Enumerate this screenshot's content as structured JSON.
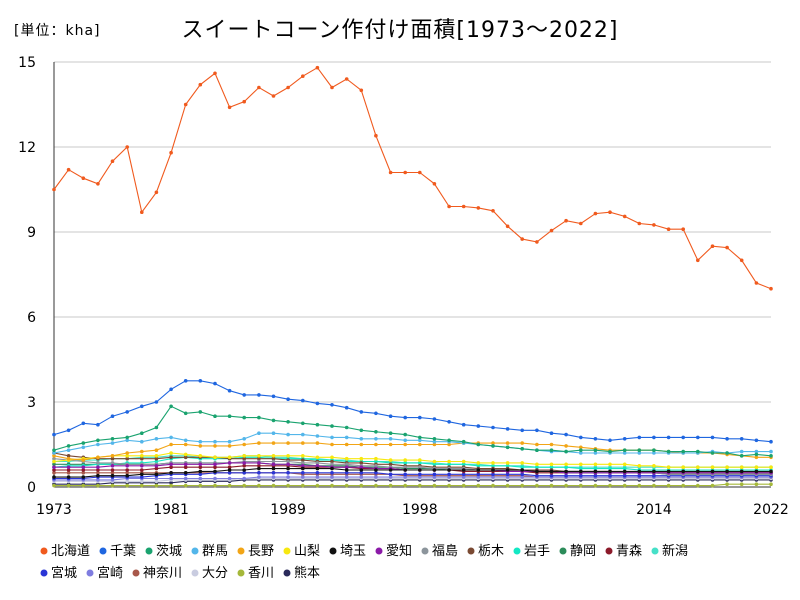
{
  "unit_label": "[単位：kha]",
  "chart_data": {
    "type": "line",
    "title": "スイートコーン作付け面積[1973～2022]",
    "xlabel": "",
    "ylabel": "",
    "x_tick_labels": [
      "1973",
      "1981",
      "1989",
      "1998",
      "2006",
      "2014",
      "2022"
    ],
    "y_tick_labels": [
      "0",
      "3",
      "6",
      "9",
      "12",
      "15"
    ],
    "xlim": [
      1973,
      2022
    ],
    "ylim": [
      0,
      15
    ],
    "grid": true,
    "legend_position": "bottom",
    "x": [
      1973,
      1974,
      1975,
      1976,
      1977,
      1978,
      1979,
      1980,
      1981,
      1982,
      1983,
      1984,
      1985,
      1986,
      1987,
      1988,
      1989,
      1990,
      1991,
      1992,
      1993,
      1994,
      1995,
      1996,
      1997,
      1998,
      1999,
      2000,
      2001,
      2002,
      2003,
      2004,
      2005,
      2006,
      2007,
      2008,
      2009,
      2010,
      2011,
      2012,
      2013,
      2014,
      2015,
      2016,
      2017,
      2018,
      2019,
      2020,
      2021,
      2022
    ],
    "series": [
      {
        "name": "北海道",
        "color": "#f05a1e",
        "values": [
          10.5,
          11.2,
          10.9,
          10.7,
          11.5,
          12.0,
          9.7,
          10.4,
          11.8,
          13.5,
          14.2,
          14.6,
          13.4,
          13.6,
          14.1,
          13.8,
          14.1,
          14.5,
          14.8,
          14.1,
          14.4,
          14.0,
          12.4,
          11.1,
          11.1,
          11.1,
          10.7,
          9.9,
          9.9,
          9.85,
          9.75,
          9.2,
          8.75,
          8.65,
          9.05,
          9.4,
          9.3,
          9.65,
          9.7,
          9.55,
          9.3,
          9.25,
          9.1,
          9.1,
          8.0,
          8.5,
          8.45,
          8.0,
          7.2,
          7.0
        ]
      },
      {
        "name": "千葉",
        "color": "#1f66e0",
        "values": [
          1.85,
          2.0,
          2.25,
          2.2,
          2.5,
          2.65,
          2.85,
          3.0,
          3.45,
          3.75,
          3.75,
          3.65,
          3.4,
          3.25,
          3.25,
          3.2,
          3.1,
          3.05,
          2.95,
          2.9,
          2.8,
          2.65,
          2.6,
          2.5,
          2.45,
          2.45,
          2.4,
          2.3,
          2.2,
          2.15,
          2.1,
          2.05,
          2.0,
          2.0,
          1.9,
          1.85,
          1.75,
          1.7,
          1.65,
          1.7,
          1.75,
          1.75,
          1.75,
          1.75,
          1.75,
          1.75,
          1.7,
          1.7,
          1.65,
          1.6
        ]
      },
      {
        "name": "茨城",
        "color": "#1aa36f",
        "values": [
          1.3,
          1.45,
          1.55,
          1.65,
          1.7,
          1.75,
          1.9,
          2.1,
          2.85,
          2.6,
          2.65,
          2.5,
          2.5,
          2.45,
          2.45,
          2.35,
          2.3,
          2.25,
          2.2,
          2.15,
          2.1,
          2.0,
          1.95,
          1.9,
          1.85,
          1.75,
          1.7,
          1.65,
          1.6,
          1.5,
          1.45,
          1.4,
          1.35,
          1.3,
          1.3,
          1.25,
          1.3,
          1.3,
          1.25,
          1.3,
          1.3,
          1.3,
          1.25,
          1.25,
          1.25,
          1.2,
          1.2,
          1.1,
          1.15,
          1.1
        ]
      },
      {
        "name": "群馬",
        "color": "#53b6ea",
        "values": [
          1.2,
          1.3,
          1.4,
          1.5,
          1.55,
          1.65,
          1.6,
          1.7,
          1.75,
          1.65,
          1.6,
          1.6,
          1.6,
          1.7,
          1.9,
          1.9,
          1.85,
          1.85,
          1.8,
          1.75,
          1.75,
          1.7,
          1.7,
          1.7,
          1.65,
          1.65,
          1.6,
          1.6,
          1.55,
          1.5,
          1.45,
          1.4,
          1.35,
          1.3,
          1.25,
          1.25,
          1.2,
          1.2,
          1.2,
          1.2,
          1.2,
          1.2,
          1.2,
          1.2,
          1.2,
          1.25,
          1.2,
          1.25,
          1.25,
          1.25
        ]
      },
      {
        "name": "長野",
        "color": "#f2a516",
        "values": [
          1.1,
          1.0,
          0.95,
          1.05,
          1.1,
          1.2,
          1.25,
          1.3,
          1.5,
          1.5,
          1.45,
          1.45,
          1.45,
          1.5,
          1.55,
          1.55,
          1.55,
          1.55,
          1.55,
          1.5,
          1.5,
          1.5,
          1.5,
          1.5,
          1.5,
          1.5,
          1.5,
          1.5,
          1.55,
          1.55,
          1.55,
          1.55,
          1.55,
          1.5,
          1.5,
          1.45,
          1.4,
          1.35,
          1.3,
          1.3,
          1.3,
          1.3,
          1.25,
          1.2,
          1.2,
          1.2,
          1.15,
          1.1,
          1.05,
          1.05
        ]
      },
      {
        "name": "山梨",
        "color": "#f7e80f",
        "values": [
          0.9,
          0.95,
          1.0,
          1.05,
          1.1,
          1.1,
          1.1,
          1.1,
          1.2,
          1.15,
          1.1,
          1.05,
          1.05,
          1.1,
          1.1,
          1.1,
          1.1,
          1.1,
          1.05,
          1.05,
          1.0,
          1.0,
          1.0,
          0.95,
          0.95,
          0.95,
          0.9,
          0.9,
          0.9,
          0.85,
          0.85,
          0.85,
          0.85,
          0.8,
          0.8,
          0.8,
          0.8,
          0.8,
          0.8,
          0.8,
          0.75,
          0.75,
          0.7,
          0.7,
          0.7,
          0.7,
          0.7,
          0.7,
          0.7,
          0.7
        ]
      },
      {
        "name": "埼玉",
        "color": "#111111",
        "values": [
          0.35,
          0.35,
          0.35,
          0.4,
          0.4,
          0.4,
          0.45,
          0.45,
          0.5,
          0.5,
          0.55,
          0.55,
          0.6,
          0.6,
          0.65,
          0.65,
          0.65,
          0.65,
          0.65,
          0.65,
          0.6,
          0.6,
          0.6,
          0.6,
          0.6,
          0.6,
          0.6,
          0.6,
          0.6,
          0.6,
          0.6,
          0.6,
          0.6,
          0.55,
          0.55,
          0.55,
          0.55,
          0.55,
          0.55,
          0.55,
          0.55,
          0.55,
          0.55,
          0.55,
          0.55,
          0.55,
          0.55,
          0.55,
          0.55,
          0.55
        ]
      },
      {
        "name": "愛知",
        "color": "#8b1aa8",
        "values": [
          0.7,
          0.7,
          0.7,
          0.7,
          0.75,
          0.75,
          0.75,
          0.75,
          0.8,
          0.8,
          0.8,
          0.8,
          0.85,
          0.85,
          0.85,
          0.8,
          0.8,
          0.75,
          0.75,
          0.7,
          0.7,
          0.7,
          0.65,
          0.65,
          0.6,
          0.6,
          0.6,
          0.6,
          0.6,
          0.6,
          0.6,
          0.55,
          0.55,
          0.55,
          0.55,
          0.5,
          0.5,
          0.5,
          0.5,
          0.5,
          0.5,
          0.5,
          0.5,
          0.5,
          0.5,
          0.5,
          0.5,
          0.5,
          0.5,
          0.5
        ]
      },
      {
        "name": "福島",
        "color": "#8c959c",
        "values": [
          1.0,
          0.95,
          0.9,
          0.85,
          0.85,
          0.8,
          0.8,
          0.8,
          0.85,
          0.85,
          0.85,
          0.85,
          0.85,
          0.9,
          0.9,
          0.9,
          0.9,
          0.85,
          0.85,
          0.8,
          0.8,
          0.75,
          0.75,
          0.7,
          0.7,
          0.7,
          0.65,
          0.65,
          0.65,
          0.6,
          0.6,
          0.6,
          0.6,
          0.55,
          0.55,
          0.55,
          0.55,
          0.5,
          0.5,
          0.5,
          0.5,
          0.5,
          0.45,
          0.45,
          0.45,
          0.45,
          0.45,
          0.45,
          0.45,
          0.45
        ]
      },
      {
        "name": "栃木",
        "color": "#7a4a33",
        "values": [
          1.2,
          1.1,
          1.05,
          1.0,
          1.0,
          1.0,
          1.0,
          1.0,
          1.05,
          1.05,
          1.05,
          1.05,
          1.0,
          1.0,
          1.0,
          1.0,
          0.95,
          0.95,
          0.9,
          0.9,
          0.85,
          0.85,
          0.8,
          0.8,
          0.75,
          0.75,
          0.7,
          0.7,
          0.7,
          0.65,
          0.65,
          0.65,
          0.6,
          0.6,
          0.6,
          0.55,
          0.55,
          0.55,
          0.55,
          0.5,
          0.5,
          0.5,
          0.5,
          0.5,
          0.5,
          0.5,
          0.5,
          0.5,
          0.5,
          0.5
        ]
      },
      {
        "name": "岩手",
        "color": "#13e8c4",
        "values": [
          0.7,
          0.75,
          0.75,
          0.8,
          0.8,
          0.85,
          0.85,
          0.9,
          1.0,
          1.05,
          1.0,
          1.0,
          1.0,
          1.05,
          1.05,
          1.0,
          1.0,
          1.0,
          0.95,
          0.95,
          0.9,
          0.9,
          0.9,
          0.85,
          0.85,
          0.85,
          0.8,
          0.8,
          0.8,
          0.75,
          0.75,
          0.75,
          0.7,
          0.7,
          0.7,
          0.7,
          0.65,
          0.65,
          0.65,
          0.65,
          0.6,
          0.6,
          0.6,
          0.6,
          0.6,
          0.6,
          0.6,
          0.6,
          0.6,
          0.6
        ]
      },
      {
        "name": "静岡",
        "color": "#2c8c5a",
        "values": [
          0.8,
          0.8,
          0.8,
          0.8,
          0.8,
          0.8,
          0.8,
          0.8,
          0.85,
          0.85,
          0.85,
          0.85,
          0.85,
          0.85,
          0.85,
          0.8,
          0.8,
          0.8,
          0.75,
          0.75,
          0.75,
          0.7,
          0.7,
          0.7,
          0.65,
          0.65,
          0.65,
          0.6,
          0.6,
          0.6,
          0.6,
          0.55,
          0.55,
          0.55,
          0.55,
          0.5,
          0.5,
          0.5,
          0.5,
          0.5,
          0.5,
          0.5,
          0.45,
          0.45,
          0.45,
          0.45,
          0.45,
          0.45,
          0.45,
          0.45
        ]
      },
      {
        "name": "青森",
        "color": "#8c1a2a",
        "values": [
          0.6,
          0.6,
          0.6,
          0.6,
          0.6,
          0.6,
          0.6,
          0.65,
          0.7,
          0.7,
          0.7,
          0.7,
          0.7,
          0.75,
          0.75,
          0.75,
          0.75,
          0.7,
          0.7,
          0.7,
          0.7,
          0.65,
          0.65,
          0.65,
          0.6,
          0.6,
          0.6,
          0.6,
          0.55,
          0.55,
          0.55,
          0.55,
          0.55,
          0.5,
          0.5,
          0.5,
          0.5,
          0.5,
          0.5,
          0.5,
          0.5,
          0.5,
          0.5,
          0.5,
          0.5,
          0.5,
          0.5,
          0.5,
          0.5,
          0.5
        ]
      },
      {
        "name": "新潟",
        "color": "#46e0c8",
        "values": [
          0.9,
          0.9,
          0.95,
          0.95,
          1.0,
          1.0,
          1.05,
          1.05,
          1.1,
          1.1,
          1.05,
          1.05,
          1.05,
          1.1,
          1.1,
          1.05,
          1.05,
          1.0,
          1.0,
          0.95,
          0.95,
          0.9,
          0.9,
          0.9,
          0.85,
          0.85,
          0.85,
          0.8,
          0.8,
          0.8,
          0.75,
          0.75,
          0.75,
          0.7,
          0.7,
          0.7,
          0.7,
          0.7,
          0.7,
          0.7,
          0.7,
          0.7,
          0.7,
          0.7,
          0.7,
          0.7,
          0.7,
          0.7,
          0.7,
          0.7
        ]
      },
      {
        "name": "宮城",
        "color": "#2a35d6",
        "values": [
          0.3,
          0.3,
          0.3,
          0.35,
          0.35,
          0.35,
          0.35,
          0.4,
          0.45,
          0.45,
          0.45,
          0.5,
          0.5,
          0.5,
          0.5,
          0.5,
          0.5,
          0.5,
          0.5,
          0.5,
          0.5,
          0.5,
          0.5,
          0.45,
          0.45,
          0.45,
          0.45,
          0.45,
          0.45,
          0.45,
          0.45,
          0.45,
          0.45,
          0.4,
          0.4,
          0.4,
          0.4,
          0.4,
          0.4,
          0.4,
          0.4,
          0.4,
          0.4,
          0.4,
          0.4,
          0.4,
          0.4,
          0.4,
          0.4,
          0.4
        ]
      },
      {
        "name": "宮崎",
        "color": "#7f7de0",
        "values": [
          0.25,
          0.25,
          0.25,
          0.25,
          0.25,
          0.3,
          0.3,
          0.3,
          0.3,
          0.3,
          0.3,
          0.3,
          0.3,
          0.3,
          0.35,
          0.35,
          0.35,
          0.35,
          0.35,
          0.35,
          0.35,
          0.35,
          0.35,
          0.35,
          0.35,
          0.35,
          0.35,
          0.35,
          0.35,
          0.35,
          0.35,
          0.35,
          0.35,
          0.35,
          0.35,
          0.35,
          0.35,
          0.35,
          0.35,
          0.35,
          0.35,
          0.35,
          0.35,
          0.35,
          0.35,
          0.35,
          0.35,
          0.35,
          0.35,
          0.35
        ]
      },
      {
        "name": "神奈川",
        "color": "#a8584a",
        "values": [
          0.5,
          0.5,
          0.5,
          0.5,
          0.5,
          0.5,
          0.5,
          0.5,
          0.5,
          0.5,
          0.5,
          0.5,
          0.5,
          0.5,
          0.5,
          0.5,
          0.5,
          0.45,
          0.45,
          0.45,
          0.45,
          0.45,
          0.45,
          0.45,
          0.4,
          0.4,
          0.4,
          0.4,
          0.4,
          0.4,
          0.4,
          0.4,
          0.4,
          0.35,
          0.35,
          0.35,
          0.35,
          0.35,
          0.35,
          0.35,
          0.35,
          0.35,
          0.35,
          0.35,
          0.35,
          0.35,
          0.35,
          0.35,
          0.35,
          0.35
        ]
      },
      {
        "name": "大分",
        "color": "#c9cce0",
        "values": [
          0.2,
          0.2,
          0.2,
          0.2,
          0.2,
          0.2,
          0.2,
          0.2,
          0.25,
          0.25,
          0.25,
          0.25,
          0.25,
          0.3,
          0.3,
          0.3,
          0.3,
          0.3,
          0.3,
          0.3,
          0.3,
          0.3,
          0.3,
          0.3,
          0.3,
          0.3,
          0.3,
          0.3,
          0.3,
          0.3,
          0.3,
          0.3,
          0.3,
          0.3,
          0.3,
          0.3,
          0.3,
          0.3,
          0.3,
          0.3,
          0.3,
          0.3,
          0.3,
          0.3,
          0.3,
          0.3,
          0.3,
          0.3,
          0.3,
          0.3
        ]
      },
      {
        "name": "香川",
        "color": "#a5b83a",
        "values": [
          0.05,
          0.05,
          0.05,
          0.05,
          0.05,
          0.05,
          0.05,
          0.05,
          0.05,
          0.05,
          0.05,
          0.05,
          0.05,
          0.05,
          0.05,
          0.05,
          0.05,
          0.05,
          0.05,
          0.05,
          0.05,
          0.05,
          0.05,
          0.05,
          0.05,
          0.05,
          0.05,
          0.05,
          0.05,
          0.05,
          0.05,
          0.05,
          0.05,
          0.05,
          0.05,
          0.05,
          0.05,
          0.05,
          0.05,
          0.05,
          0.05,
          0.05,
          0.05,
          0.05,
          0.05,
          0.05,
          0.1,
          0.1,
          0.1,
          0.1
        ]
      },
      {
        "name": "熊本",
        "color": "#2a2a5a",
        "values": [
          0.1,
          0.1,
          0.1,
          0.1,
          0.15,
          0.15,
          0.15,
          0.15,
          0.15,
          0.2,
          0.2,
          0.2,
          0.2,
          0.25,
          0.25,
          0.25,
          0.25,
          0.25,
          0.25,
          0.25,
          0.25,
          0.25,
          0.25,
          0.25,
          0.25,
          0.25,
          0.25,
          0.25,
          0.25,
          0.25,
          0.25,
          0.25,
          0.25,
          0.25,
          0.25,
          0.25,
          0.25,
          0.25,
          0.25,
          0.25,
          0.25,
          0.25,
          0.25,
          0.25,
          0.25,
          0.25,
          0.25,
          0.25,
          0.25,
          0.25
        ]
      }
    ]
  }
}
